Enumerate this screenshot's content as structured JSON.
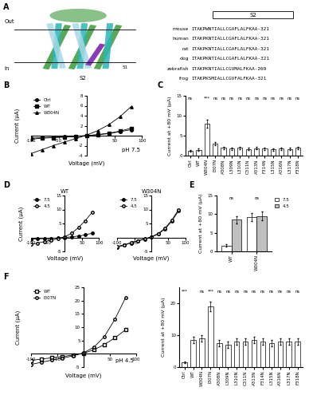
{
  "diagram": {
    "panel": "A",
    "labels": {
      "out": "Out",
      "in": "In",
      "helix": "S2",
      "residue": "51"
    },
    "alignment": {
      "header": "S2",
      "rows": [
        {
          "species": "mouse",
          "sequence": "ITAKPWNTIALLCGAFLALFKAA-321"
        },
        {
          "species": "human",
          "sequence": "ITAKPKNTIALLCGAFLALFKAA-321"
        },
        {
          "species": "rat",
          "sequence": "ITAKPKNTIALLCGAFLALFKAA-321"
        },
        {
          "species": "dog",
          "sequence": "ITAKPKNTIALLCGAFLALFKAA-321"
        },
        {
          "species": "zebrafish",
          "sequence": "ITAKPKNTIALLCGVMALFKAA-269"
        },
        {
          "species": "frog",
          "sequence": "ITAKPKSMIALLCGVFALFKAA-321"
        }
      ]
    }
  },
  "chart_data": [
    {
      "panel": "B",
      "type": "line",
      "annotation": "pH 7.5",
      "x": [
        -100,
        -80,
        -60,
        -40,
        -20,
        0,
        20,
        40,
        60,
        80
      ],
      "xlabel": "Voltage (mV)",
      "ylabel": "Current (μA)",
      "xlim": [
        -100,
        100
      ],
      "xticks": [
        -100,
        -50,
        50,
        100
      ],
      "ylim": [
        -4,
        8
      ],
      "yticks": [
        -4,
        -2,
        2,
        4,
        6,
        8
      ],
      "legend": "upper left",
      "series": [
        {
          "name": "Ctrl",
          "color": "#000000",
          "marker": "circle",
          "values": [
            -0.5,
            -0.4,
            -0.3,
            -0.2,
            -0.1,
            0.0,
            0.2,
            0.4,
            0.8,
            1.2
          ]
        },
        {
          "name": "WT",
          "color": "#000000",
          "marker": "square",
          "values": [
            -0.7,
            -0.5,
            -0.4,
            -0.3,
            -0.2,
            0.0,
            0.2,
            0.5,
            0.9,
            1.5
          ]
        },
        {
          "name": "W304N",
          "color": "#000000",
          "marker": "triangle",
          "values": [
            -3.6,
            -2.8,
            -2.0,
            -1.3,
            -0.6,
            0.1,
            1.0,
            2.2,
            3.8,
            5.8
          ]
        }
      ]
    },
    {
      "panel": "C",
      "type": "bar",
      "ylabel": "Current at +80 mV (μA)",
      "categories": [
        "Ctrl",
        "WT",
        "W304N",
        "I307N",
        "A308N",
        "L309N",
        "L310N",
        "C311N",
        "A313N",
        "F314N",
        "L315N",
        "A316N",
        "L317N",
        "F318N"
      ],
      "values": [
        1.2,
        1.5,
        8.0,
        3.0,
        2.0,
        1.8,
        2.0,
        1.7,
        1.9,
        1.8,
        1.6,
        1.8,
        1.7,
        2.0
      ],
      "errors": [
        0.2,
        0.3,
        1.0,
        0.4,
        0.3,
        0.3,
        0.3,
        0.3,
        0.3,
        0.3,
        0.3,
        0.3,
        0.3,
        0.3
      ],
      "significance": [
        "ns",
        null,
        "***",
        "ns",
        "ns",
        "ns",
        "ns",
        "ns",
        "ns",
        "ns",
        "ns",
        "ns",
        "ns",
        "ns"
      ],
      "color": "#ffffff",
      "ylim": [
        0,
        15
      ],
      "yticks": [
        0,
        5,
        10,
        15
      ]
    },
    {
      "panel": "D",
      "type": "line",
      "title": "WT",
      "x": [
        -100,
        -80,
        -60,
        -40,
        -20,
        0,
        20,
        40,
        60,
        80
      ],
      "xlabel": "Voltage (mV)",
      "ylabel": "Current (μA)",
      "xlim": [
        -100,
        100
      ],
      "xticks": [
        -100,
        -50,
        50,
        100
      ],
      "ylim": [
        -5,
        15
      ],
      "yticks": [
        -5,
        5,
        10,
        15
      ],
      "legend": "upper left",
      "series": [
        {
          "name": "7.5",
          "color": "#000000",
          "marker": "circle",
          "values": [
            -0.7,
            -0.5,
            -0.4,
            -0.3,
            -0.2,
            0.0,
            0.2,
            0.5,
            0.9,
            1.5
          ]
        },
        {
          "name": "4.5",
          "color": "#000000",
          "marker": "open_circle",
          "values": [
            -2.5,
            -2.0,
            -1.5,
            -1.0,
            -0.5,
            0.2,
            1.5,
            3.5,
            6.0,
            9.0
          ]
        }
      ]
    },
    {
      "type": "line",
      "title": "W304N",
      "x": [
        -100,
        -80,
        -60,
        -40,
        -20,
        0,
        20,
        40,
        60,
        80
      ],
      "xlabel": "Voltage (mV)",
      "xlim": [
        -100,
        100
      ],
      "xticks": [
        -100,
        -50,
        50,
        100
      ],
      "ylim": [
        -5,
        15
      ],
      "yticks": [
        -5,
        5,
        10,
        15
      ],
      "legend": "upper left",
      "series": [
        {
          "name": "7.5",
          "color": "#000000",
          "marker": "circle",
          "values": [
            -3.6,
            -2.8,
            -2.0,
            -1.3,
            -0.6,
            0.1,
            1.2,
            3.0,
            5.8,
            9.5
          ]
        },
        {
          "name": "4.5",
          "color": "#000000",
          "marker": "open_circle",
          "values": [
            -3.2,
            -2.6,
            -1.9,
            -1.2,
            -0.5,
            0.2,
            1.4,
            3.3,
            6.2,
            10.0
          ]
        }
      ]
    },
    {
      "panel": "E",
      "type": "bar",
      "ylabel": "Current at +80 mV (μA)",
      "categories": [
        "WT",
        "W304N"
      ],
      "legend": "upper left",
      "significance": [
        "ns",
        "ns"
      ],
      "ylim": [
        0,
        15
      ],
      "yticks": [
        0,
        5,
        10,
        15
      ],
      "series": [
        {
          "name": "7.5",
          "color": "#ffffff",
          "values": [
            1.6,
            9.2
          ],
          "errors": [
            0.3,
            1.0
          ]
        },
        {
          "name": "4.5",
          "color": "#bfbfbf",
          "values": [
            8.5,
            9.5
          ],
          "errors": [
            1.0,
            1.2
          ]
        }
      ]
    },
    {
      "panel": "F",
      "type": "line",
      "annotation": "pH 4.5",
      "x": [
        -100,
        -80,
        -60,
        -40,
        -20,
        0,
        20,
        40,
        60,
        80
      ],
      "xlabel": "Voltage (mV)",
      "ylabel": "Current (μA)",
      "xlim": [
        -100,
        100
      ],
      "xticks": [
        -100,
        -50,
        50,
        100
      ],
      "ylim": [
        -5,
        25
      ],
      "yticks": [
        -5,
        5,
        10,
        15,
        20,
        25
      ],
      "legend": "upper left",
      "series": [
        {
          "name": "WT",
          "color": "#000000",
          "marker": "open_square",
          "values": [
            -2.5,
            -2.0,
            -1.5,
            -1.0,
            -0.5,
            0.2,
            1.5,
            3.5,
            6.0,
            9.0
          ]
        },
        {
          "name": "I307N",
          "color": "#000000",
          "marker": "open_circle",
          "values": [
            -4.0,
            -3.2,
            -2.4,
            -1.6,
            -0.8,
            0.3,
            2.5,
            6.5,
            13.0,
            21.0
          ]
        }
      ]
    },
    {
      "type": "bar",
      "ylabel": "Current at +80 mV (μA)",
      "categories": [
        "Ctrl",
        "WT",
        "W304N",
        "I307N",
        "A308N",
        "L309N",
        "L310N",
        "C311N",
        "A313N",
        "F314N",
        "L315N",
        "A316N",
        "L317N",
        "F318N"
      ],
      "values": [
        1.5,
        8.5,
        9.0,
        19.0,
        7.5,
        7.0,
        8.0,
        8.0,
        8.5,
        8.0,
        7.5,
        8.0,
        8.0,
        8.0
      ],
      "errors": [
        0.3,
        1.0,
        1.0,
        1.5,
        1.0,
        1.0,
        1.0,
        1.0,
        1.0,
        1.0,
        1.0,
        1.0,
        1.0,
        1.0
      ],
      "significance": [
        "***",
        null,
        "ns",
        "***",
        "ns",
        "ns",
        "ns",
        "ns",
        "ns",
        "ns",
        "ns",
        "ns",
        "ns",
        "ns"
      ],
      "color": "#ffffff",
      "ylim": [
        0,
        25
      ],
      "yticks": [
        0,
        10,
        20
      ]
    }
  ]
}
